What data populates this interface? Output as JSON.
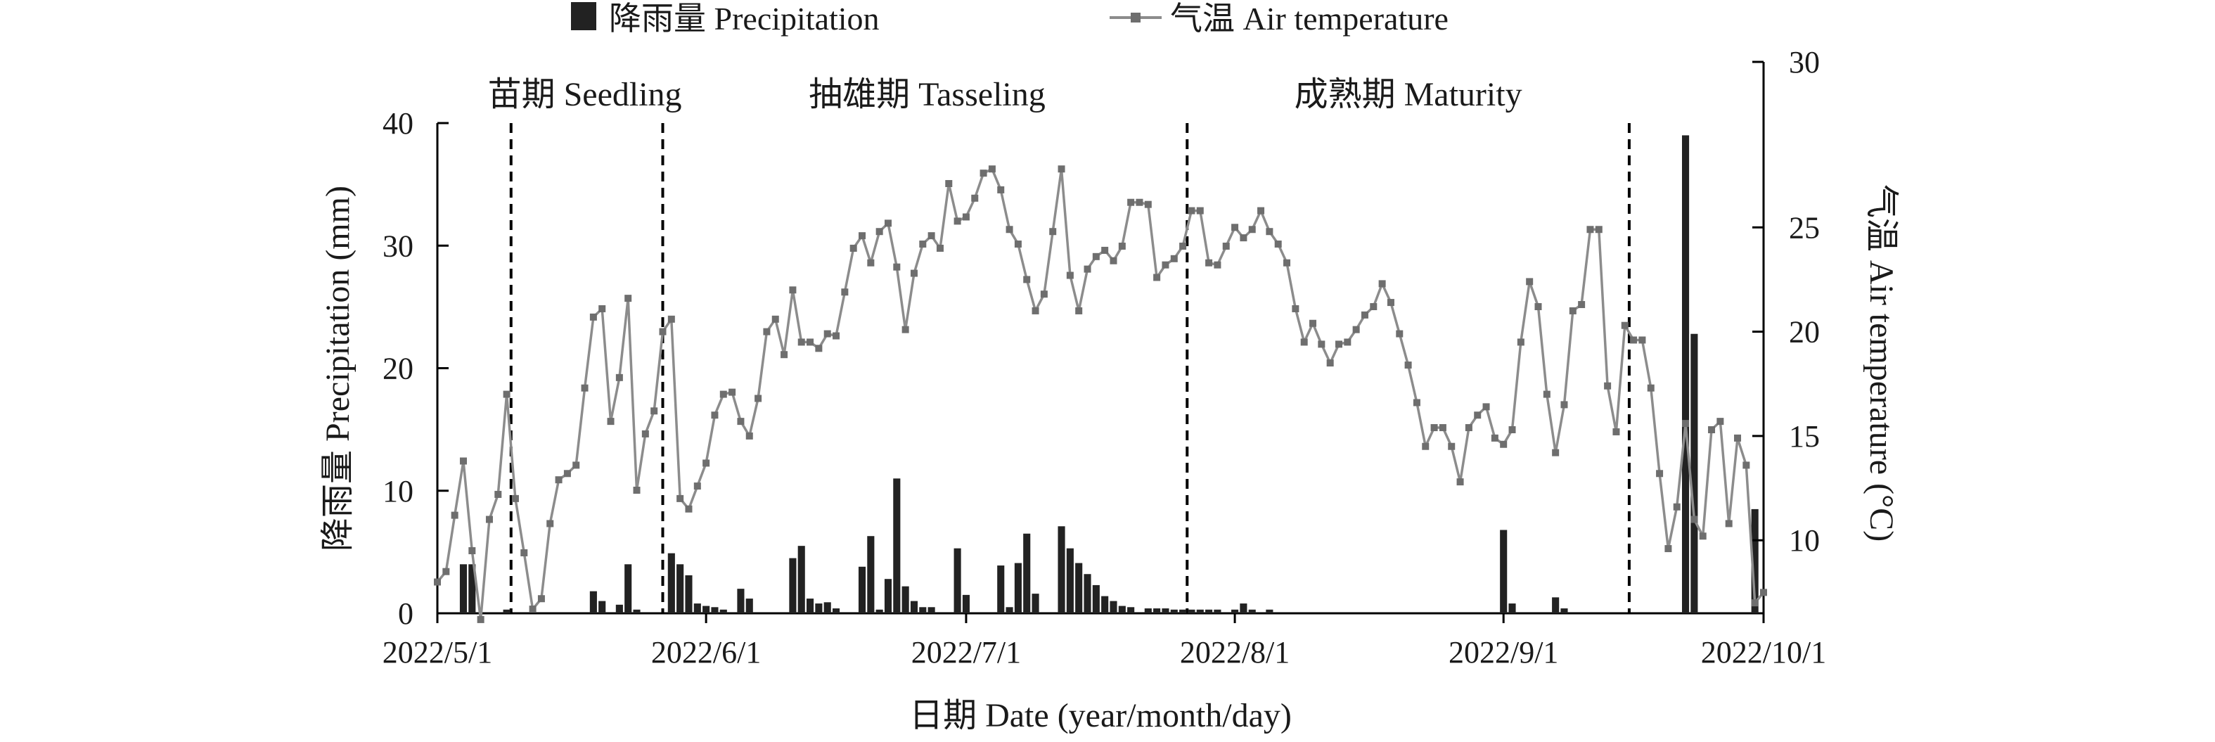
{
  "chart_data": {
    "type": "bar+line",
    "legend": {
      "precipitation": "降雨量 Precipitation",
      "temperature": "气温 Air temperature"
    },
    "xlabel": "日期 Date (year/month/day)",
    "ylabel_left": "降雨量 Precipitation (mm)",
    "ylabel_right": "气温 Air temperature (°C)",
    "ylim_left": [
      0,
      40
    ],
    "ylim_right": [
      6.5,
      30
    ],
    "yticks_left": [
      "0",
      "10",
      "20",
      "30",
      "40"
    ],
    "yticks_right": [
      "10",
      "15",
      "20",
      "25",
      "30"
    ],
    "xticks": [
      {
        "label": "2022/5/1",
        "day": 0
      },
      {
        "label": "2022/6/1",
        "day": 31
      },
      {
        "label": "2022/7/1",
        "day": 61
      },
      {
        "label": "2022/8/1",
        "day": 92
      },
      {
        "label": "2022/9/1",
        "day": 123
      },
      {
        "label": "2022/10/1",
        "day": 153
      }
    ],
    "x_range": [
      0,
      153
    ],
    "stage_dividers": [
      8.5,
      26,
      86.5,
      137.5
    ],
    "stages": [
      {
        "label": "苗期 Seedling",
        "center": 17
      },
      {
        "label": "抽雄期 Tasseling",
        "center": 56.5
      },
      {
        "label": "成熟期 Maturity",
        "center": 112
      }
    ],
    "precipitation": [
      {
        "day": 3,
        "value": 4.0
      },
      {
        "day": 4,
        "value": 4.0
      },
      {
        "day": 8,
        "value": 0.3
      },
      {
        "day": 18,
        "value": 1.8
      },
      {
        "day": 19,
        "value": 1.0
      },
      {
        "day": 21,
        "value": 0.7
      },
      {
        "day": 22,
        "value": 4.0
      },
      {
        "day": 23,
        "value": 0.3
      },
      {
        "day": 27,
        "value": 4.9
      },
      {
        "day": 28,
        "value": 4.0
      },
      {
        "day": 29,
        "value": 3.1
      },
      {
        "day": 30,
        "value": 0.8
      },
      {
        "day": 31,
        "value": 0.6
      },
      {
        "day": 32,
        "value": 0.5
      },
      {
        "day": 33,
        "value": 0.3
      },
      {
        "day": 35,
        "value": 2.0
      },
      {
        "day": 36,
        "value": 1.2
      },
      {
        "day": 41,
        "value": 4.5
      },
      {
        "day": 42,
        "value": 5.5
      },
      {
        "day": 43,
        "value": 1.2
      },
      {
        "day": 44,
        "value": 0.8
      },
      {
        "day": 45,
        "value": 0.9
      },
      {
        "day": 46,
        "value": 0.4
      },
      {
        "day": 49,
        "value": 3.8
      },
      {
        "day": 50,
        "value": 6.3
      },
      {
        "day": 51,
        "value": 0.3
      },
      {
        "day": 52,
        "value": 2.8
      },
      {
        "day": 53,
        "value": 11.0
      },
      {
        "day": 54,
        "value": 2.2
      },
      {
        "day": 55,
        "value": 1.0
      },
      {
        "day": 56,
        "value": 0.5
      },
      {
        "day": 57,
        "value": 0.5
      },
      {
        "day": 60,
        "value": 5.3
      },
      {
        "day": 61,
        "value": 1.5
      },
      {
        "day": 65,
        "value": 3.9
      },
      {
        "day": 66,
        "value": 0.5
      },
      {
        "day": 67,
        "value": 4.1
      },
      {
        "day": 68,
        "value": 6.5
      },
      {
        "day": 69,
        "value": 1.6
      },
      {
        "day": 72,
        "value": 7.1
      },
      {
        "day": 73,
        "value": 5.3
      },
      {
        "day": 74,
        "value": 4.1
      },
      {
        "day": 75,
        "value": 3.2
      },
      {
        "day": 76,
        "value": 2.3
      },
      {
        "day": 77,
        "value": 1.4
      },
      {
        "day": 78,
        "value": 1.0
      },
      {
        "day": 79,
        "value": 0.6
      },
      {
        "day": 80,
        "value": 0.5
      },
      {
        "day": 82,
        "value": 0.4
      },
      {
        "day": 83,
        "value": 0.4
      },
      {
        "day": 84,
        "value": 0.4
      },
      {
        "day": 85,
        "value": 0.3
      },
      {
        "day": 86,
        "value": 0.3
      },
      {
        "day": 87,
        "value": 0.3
      },
      {
        "day": 88,
        "value": 0.3
      },
      {
        "day": 89,
        "value": 0.3
      },
      {
        "day": 90,
        "value": 0.3
      },
      {
        "day": 92,
        "value": 0.3
      },
      {
        "day": 93,
        "value": 0.8
      },
      {
        "day": 94,
        "value": 0.3
      },
      {
        "day": 96,
        "value": 0.3
      },
      {
        "day": 123,
        "value": 6.8
      },
      {
        "day": 124,
        "value": 0.8
      },
      {
        "day": 129,
        "value": 1.3
      },
      {
        "day": 130,
        "value": 0.4
      },
      {
        "day": 144,
        "value": 39.0
      },
      {
        "day": 145,
        "value": 22.8
      },
      {
        "day": 152,
        "value": 8.5
      }
    ],
    "temperature": [
      [
        0,
        8.0
      ],
      [
        1,
        8.5
      ],
      [
        2,
        11.2
      ],
      [
        3,
        13.8
      ],
      [
        4,
        9.5
      ],
      [
        5,
        6.2
      ],
      [
        6,
        11.0
      ],
      [
        7,
        12.2
      ],
      [
        8,
        17.0
      ],
      [
        9,
        12.0
      ],
      [
        10,
        9.4
      ],
      [
        11,
        6.7
      ],
      [
        12,
        7.2
      ],
      [
        13,
        10.8
      ],
      [
        14,
        12.9
      ],
      [
        15,
        13.2
      ],
      [
        16,
        13.6
      ],
      [
        17,
        17.3
      ],
      [
        18,
        20.7
      ],
      [
        19,
        21.1
      ],
      [
        20,
        15.7
      ],
      [
        21,
        17.8
      ],
      [
        22,
        21.6
      ],
      [
        23,
        12.4
      ],
      [
        24,
        15.1
      ],
      [
        25,
        16.2
      ],
      [
        26,
        20.0
      ],
      [
        27,
        20.6
      ],
      [
        28,
        12.0
      ],
      [
        29,
        11.5
      ],
      [
        30,
        12.6
      ],
      [
        31,
        13.7
      ],
      [
        32,
        16.0
      ],
      [
        33,
        17.0
      ],
      [
        34,
        17.1
      ],
      [
        35,
        15.7
      ],
      [
        36,
        15.0
      ],
      [
        37,
        16.8
      ],
      [
        38,
        20.0
      ],
      [
        39,
        20.6
      ],
      [
        40,
        18.9
      ],
      [
        41,
        22.0
      ],
      [
        42,
        19.5
      ],
      [
        43,
        19.5
      ],
      [
        44,
        19.2
      ],
      [
        45,
        19.9
      ],
      [
        46,
        19.8
      ],
      [
        47,
        21.9
      ],
      [
        48,
        24.0
      ],
      [
        49,
        24.6
      ],
      [
        50,
        23.3
      ],
      [
        51,
        24.8
      ],
      [
        52,
        25.2
      ],
      [
        53,
        23.1
      ],
      [
        54,
        20.1
      ],
      [
        55,
        22.8
      ],
      [
        56,
        24.2
      ],
      [
        57,
        24.6
      ],
      [
        58,
        24.0
      ],
      [
        59,
        27.1
      ],
      [
        60,
        25.3
      ],
      [
        61,
        25.5
      ],
      [
        62,
        26.4
      ],
      [
        63,
        27.6
      ],
      [
        64,
        27.8
      ],
      [
        65,
        26.8
      ],
      [
        66,
        24.9
      ],
      [
        67,
        24.2
      ],
      [
        68,
        22.5
      ],
      [
        69,
        21.0
      ],
      [
        70,
        21.8
      ],
      [
        71,
        24.8
      ],
      [
        72,
        27.8
      ],
      [
        73,
        22.7
      ],
      [
        74,
        21.0
      ],
      [
        75,
        23.0
      ],
      [
        76,
        23.6
      ],
      [
        77,
        23.9
      ],
      [
        78,
        23.4
      ],
      [
        79,
        24.1
      ],
      [
        80,
        26.2
      ],
      [
        81,
        26.2
      ],
      [
        82,
        26.1
      ],
      [
        83,
        22.6
      ],
      [
        84,
        23.2
      ],
      [
        85,
        23.5
      ],
      [
        86,
        24.1
      ],
      [
        87,
        25.8
      ],
      [
        88,
        25.8
      ],
      [
        89,
        23.3
      ],
      [
        90,
        23.2
      ],
      [
        91,
        24.1
      ],
      [
        92,
        25.0
      ],
      [
        93,
        24.5
      ],
      [
        94,
        24.9
      ],
      [
        95,
        25.8
      ],
      [
        96,
        24.8
      ],
      [
        97,
        24.2
      ],
      [
        98,
        23.3
      ],
      [
        99,
        21.1
      ],
      [
        100,
        19.5
      ],
      [
        101,
        20.4
      ],
      [
        102,
        19.4
      ],
      [
        103,
        18.5
      ],
      [
        104,
        19.4
      ],
      [
        105,
        19.5
      ],
      [
        106,
        20.1
      ],
      [
        107,
        20.8
      ],
      [
        108,
        21.2
      ],
      [
        109,
        22.3
      ],
      [
        110,
        21.4
      ],
      [
        111,
        19.9
      ],
      [
        112,
        18.4
      ],
      [
        113,
        16.6
      ],
      [
        114,
        14.5
      ],
      [
        115,
        15.4
      ],
      [
        116,
        15.4
      ],
      [
        117,
        14.5
      ],
      [
        118,
        12.8
      ],
      [
        119,
        15.4
      ],
      [
        120,
        16.0
      ],
      [
        121,
        16.4
      ],
      [
        122,
        14.9
      ],
      [
        123,
        14.6
      ],
      [
        124,
        15.3
      ],
      [
        125,
        19.5
      ],
      [
        126,
        22.4
      ],
      [
        127,
        21.2
      ],
      [
        128,
        17.0
      ],
      [
        129,
        14.2
      ],
      [
        130,
        16.5
      ],
      [
        131,
        21.0
      ],
      [
        132,
        21.3
      ],
      [
        133,
        24.9
      ],
      [
        134,
        24.9
      ],
      [
        135,
        17.4
      ],
      [
        136,
        15.2
      ],
      [
        137,
        20.3
      ],
      [
        138,
        19.6
      ],
      [
        139,
        19.6
      ],
      [
        140,
        17.3
      ],
      [
        141,
        13.2
      ],
      [
        142,
        9.6
      ],
      [
        143,
        11.6
      ],
      [
        144,
        15.6
      ],
      [
        145,
        11.0
      ],
      [
        146,
        10.2
      ],
      [
        147,
        15.3
      ],
      [
        148,
        15.7
      ],
      [
        149,
        10.8
      ],
      [
        150,
        14.9
      ],
      [
        151,
        13.6
      ],
      [
        152,
        7.0
      ],
      [
        153,
        7.5
      ]
    ],
    "colors": {
      "bar": "#222222",
      "line": "#8c8c8c",
      "marker": "#6e6e6e",
      "divider": "#000000"
    },
    "legend_placement": "top-center",
    "grid": false
  }
}
